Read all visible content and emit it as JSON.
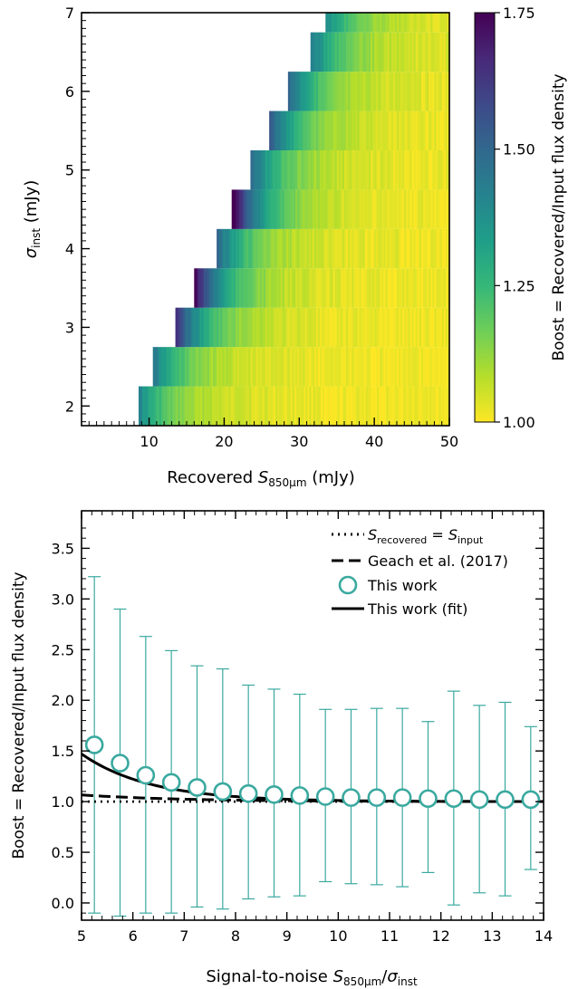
{
  "chart_data": [
    {
      "type": "heatmap",
      "xlabel": {
        "pre": "Recovered ",
        "sym": "S",
        "sub": "850μm",
        "post": " (mJy)"
      },
      "ylabel": {
        "sym": "σ",
        "sub": "inst",
        "post": " (mJy)"
      },
      "xlim": [
        1,
        50
      ],
      "ylim": [
        1.75,
        7
      ],
      "xticks": [
        10,
        20,
        30,
        40,
        50
      ],
      "yticks": [
        2,
        3,
        4,
        5,
        6,
        7
      ],
      "rows": [
        {
          "sigma": 2.0,
          "x_start": 8.6,
          "boost_start": 1.35
        },
        {
          "sigma": 2.5,
          "x_start": 10.5,
          "boost_start": 1.4
        },
        {
          "sigma": 3.0,
          "x_start": 13.5,
          "boost_start": 1.6
        },
        {
          "sigma": 3.5,
          "x_start": 16.0,
          "boost_start": 1.7
        },
        {
          "sigma": 4.0,
          "x_start": 19.0,
          "boost_start": 1.45
        },
        {
          "sigma": 4.5,
          "x_start": 21.0,
          "boost_start": 1.75
        },
        {
          "sigma": 5.0,
          "x_start": 23.5,
          "boost_start": 1.45
        },
        {
          "sigma": 5.5,
          "x_start": 26.0,
          "boost_start": 1.5
        },
        {
          "sigma": 6.0,
          "x_start": 28.5,
          "boost_start": 1.45
        },
        {
          "sigma": 6.5,
          "x_start": 31.5,
          "boost_start": 1.4
        },
        {
          "sigma": 7.0,
          "x_start": 33.5,
          "boost_start": 1.35
        }
      ],
      "colorbar": {
        "label": "Boost = Recovered/Input flux density",
        "range": [
          1.0,
          1.75
        ],
        "ticks": [
          "1.00",
          "1.25",
          "1.50",
          "1.75"
        ],
        "colormap": "viridis_r",
        "colors": [
          "#fde725",
          "#b5de2b",
          "#6ece58",
          "#35b779",
          "#1f9e89",
          "#26828e",
          "#31688e",
          "#3e4989",
          "#482878",
          "#440154"
        ]
      }
    },
    {
      "type": "scatter",
      "xlabel": {
        "pre": "Signal-to-noise ",
        "sym": "S",
        "sub": "850μm",
        "mid": "/",
        "sym2": "σ",
        "sub2": "inst"
      },
      "ylabel": "Boost = Recovered/Input flux density",
      "xlim": [
        5,
        14
      ],
      "ylim": [
        -0.17,
        3.87
      ],
      "xticks": [
        5,
        6,
        7,
        8,
        9,
        10,
        11,
        12,
        13,
        14
      ],
      "yticks": [
        "0.0",
        "0.5",
        "1.0",
        "1.5",
        "2.0",
        "2.5",
        "3.0",
        "3.5"
      ],
      "series": [
        {
          "name": "This work",
          "x": [
            5.25,
            5.75,
            6.25,
            6.75,
            7.25,
            7.75,
            8.25,
            8.75,
            9.25,
            9.75,
            10.25,
            10.75,
            11.25,
            11.75,
            12.25,
            12.75,
            13.25,
            13.75
          ],
          "y": [
            1.56,
            1.38,
            1.26,
            1.19,
            1.14,
            1.1,
            1.08,
            1.07,
            1.06,
            1.05,
            1.04,
            1.04,
            1.04,
            1.03,
            1.03,
            1.02,
            1.02,
            1.02
          ],
          "err_low": [
            -0.1,
            -0.13,
            -0.1,
            -0.1,
            -0.04,
            -0.06,
            0.04,
            0.06,
            0.07,
            0.21,
            0.19,
            0.18,
            0.16,
            0.3,
            -0.02,
            0.1,
            0.07,
            0.33
          ],
          "err_high": [
            3.22,
            2.9,
            2.63,
            2.49,
            2.34,
            2.31,
            2.15,
            2.11,
            2.06,
            1.91,
            1.91,
            1.92,
            1.92,
            1.79,
            2.09,
            1.95,
            1.98,
            1.74
          ]
        }
      ],
      "lines": {
        "identity_y": 1.0,
        "geach_fit": {
          "a": 1.0,
          "b": 0.8,
          "c": 0.5,
          "note": "y = a + b*exp(-c*x)"
        },
        "this_work_fit": {
          "a": 1.0,
          "b": 20.0,
          "c": 0.75,
          "note": "y = a + b*exp(-c*x)"
        }
      },
      "legend": {
        "placement": "top-right",
        "entries": [
          {
            "style": "dotted",
            "sym": "S",
            "sub": "recovered",
            "eq": " = ",
            "sym2": "S",
            "sub2": "input"
          },
          {
            "style": "dashed",
            "label": "Geach et al. (2017)"
          },
          {
            "style": "marker",
            "label": "This work"
          },
          {
            "style": "solid",
            "label": "This work (fit)"
          }
        ]
      },
      "colors": {
        "points": "#3aa99f",
        "lines": "#000000"
      }
    }
  ]
}
